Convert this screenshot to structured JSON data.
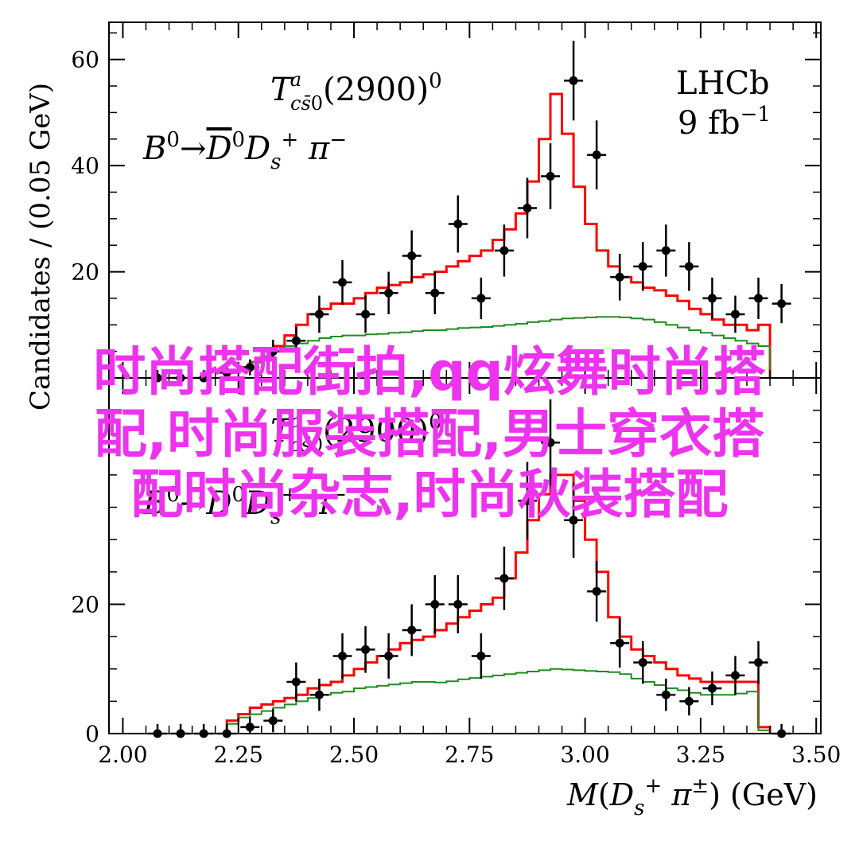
{
  "chart_data": [
    {
      "type": "histogram_with_points",
      "panel": "top",
      "annotation_resonance": "T^a_{cs̄0}(2900)^0",
      "annotation_decay": "B^0 → D̄^0 D_s^+ π^-",
      "experiment_label": "LHCb",
      "luminosity_label": "9 fb^-1",
      "ylabel": "Candidates / (0.05 GeV)",
      "ylim": [
        0,
        67
      ],
      "yticks": [
        20,
        40,
        60
      ],
      "xlim": [
        1.97,
        3.51
      ],
      "bin_edges": [
        2.225,
        2.25,
        2.275,
        2.3,
        2.325,
        2.35,
        2.375,
        2.4,
        2.425,
        2.45,
        2.475,
        2.5,
        2.525,
        2.55,
        2.575,
        2.6,
        2.625,
        2.65,
        2.675,
        2.7,
        2.725,
        2.75,
        2.775,
        2.8,
        2.825,
        2.85,
        2.875,
        2.9,
        2.925,
        2.95,
        2.975,
        3.0,
        3.025,
        3.05,
        3.075,
        3.1,
        3.125,
        3.15,
        3.175,
        3.2,
        3.225,
        3.25,
        3.275,
        3.3,
        3.325,
        3.35,
        3.375,
        3.4
      ],
      "series": [
        {
          "name": "",
          "color": "#ff0000",
          "values": [
            1,
            2,
            3,
            4,
            6,
            8,
            10,
            12,
            13,
            14,
            14,
            15,
            16,
            17,
            17.5,
            18,
            19,
            19.5,
            20,
            21,
            22,
            23,
            24,
            26,
            28,
            31,
            37,
            45,
            53.5,
            46,
            36,
            29,
            24,
            21,
            19,
            18,
            17,
            16.5,
            15.5,
            14.5,
            13,
            12,
            11,
            10,
            10,
            9,
            10
          ]
        },
        {
          "name": "",
          "color": "#228b22",
          "values": [
            1,
            2,
            3,
            4,
            5,
            6,
            6.5,
            7,
            7.5,
            7.8,
            8,
            8,
            8.2,
            8.3,
            8.5,
            8.6,
            8.8,
            9,
            9,
            9.2,
            9.4,
            9.5,
            9.6,
            9.8,
            10,
            10.2,
            10.5,
            10.7,
            11,
            11.2,
            11.3,
            11.4,
            11.5,
            11.5,
            11.4,
            11.2,
            11,
            10.5,
            10,
            9.5,
            9,
            8.5,
            8,
            7.5,
            7,
            6.5,
            6
          ]
        }
      ],
      "points": {
        "x": [
          2.075,
          2.125,
          2.175,
          2.225,
          2.275,
          2.325,
          2.375,
          2.425,
          2.475,
          2.525,
          2.575,
          2.625,
          2.675,
          2.725,
          2.775,
          2.825,
          2.875,
          2.925,
          2.975,
          3.025,
          3.075,
          3.125,
          3.175,
          3.225,
          3.275,
          3.325,
          3.375,
          3.425
        ],
        "y": [
          0,
          0,
          0,
          1,
          2,
          5,
          7,
          12,
          18,
          12,
          16,
          23,
          16,
          29,
          15,
          24,
          32,
          38,
          56,
          42,
          19,
          21,
          24,
          21,
          15,
          12,
          15,
          14
        ],
        "yerr": [
          1.5,
          1.5,
          1.5,
          1.5,
          1.5,
          2.2,
          2.6,
          3.5,
          4.2,
          3.5,
          4,
          4.8,
          4,
          5.4,
          3.9,
          4.9,
          5.7,
          6.2,
          7.5,
          6.5,
          4.4,
          4.6,
          4.9,
          4.6,
          3.9,
          3.5,
          3.9,
          3.7
        ]
      }
    },
    {
      "type": "histogram_with_points",
      "panel": "bottom",
      "annotation_resonance": "T^a_{cs̄0}(2900)^0",
      "annotation_decay": "B^0 → D^0 D_s^+ π^-",
      "xlabel": "M(D_s^+ π^±) (GeV)",
      "xlim": [
        1.97,
        3.51
      ],
      "xticks": [
        2.0,
        2.25,
        2.5,
        2.75,
        3.0,
        3.25,
        3.5
      ],
      "xtick_labels": [
        "2.00",
        "2.25",
        "2.50",
        "2.75",
        "3.00",
        "3.25",
        "3.50"
      ],
      "ylim": [
        0,
        55
      ],
      "yticks": [
        0,
        20
      ],
      "bin_edges": [
        2.225,
        2.25,
        2.275,
        2.3,
        2.325,
        2.35,
        2.375,
        2.4,
        2.425,
        2.45,
        2.475,
        2.5,
        2.525,
        2.55,
        2.575,
        2.6,
        2.625,
        2.65,
        2.675,
        2.7,
        2.725,
        2.75,
        2.775,
        2.8,
        2.825,
        2.85,
        2.875,
        2.9,
        2.925,
        2.95,
        2.975,
        3.0,
        3.025,
        3.05,
        3.075,
        3.1,
        3.125,
        3.15,
        3.175,
        3.2,
        3.225,
        3.25,
        3.275,
        3.3,
        3.325,
        3.35,
        3.375,
        3.4
      ],
      "series": [
        {
          "name": "",
          "color": "#ff0000",
          "values": [
            2,
            3,
            4,
            4.5,
            5,
            5.5,
            6,
            7,
            7.5,
            8,
            9,
            10,
            11,
            12,
            13,
            14,
            14.5,
            15,
            16,
            17,
            18,
            19,
            20,
            21,
            24,
            28,
            33,
            37,
            40,
            40,
            36,
            30,
            25,
            18,
            15,
            13,
            12,
            11,
            10,
            9,
            8.5,
            8,
            8,
            8,
            8,
            8,
            1
          ]
        },
        {
          "name": "",
          "color": "#228b22",
          "values": [
            1.5,
            2.5,
            3,
            3.5,
            4,
            4.5,
            5,
            5.5,
            6,
            6.3,
            6.5,
            7,
            7.2,
            7.4,
            7.6,
            7.8,
            8,
            8,
            7.9,
            8.1,
            8.4,
            8.6,
            8.8,
            9,
            9.2,
            9.4,
            9.6,
            9.8,
            10,
            9.9,
            9.8,
            9.7,
            9.6,
            9.5,
            9.2,
            8.5,
            8,
            7.5,
            7,
            6.7,
            6.3,
            6,
            6,
            6,
            6.2,
            6.5,
            0.5
          ]
        }
      ],
      "points": {
        "x": [
          2.075,
          2.125,
          2.175,
          2.225,
          2.275,
          2.325,
          2.375,
          2.425,
          2.475,
          2.525,
          2.575,
          2.625,
          2.675,
          2.725,
          2.775,
          2.825,
          2.875,
          2.925,
          2.975,
          3.025,
          3.075,
          3.125,
          3.175,
          3.225,
          3.275,
          3.325,
          3.375,
          3.425
        ],
        "y": [
          0,
          0,
          0,
          0,
          1,
          2,
          8,
          6,
          12,
          13,
          12,
          16,
          20,
          20,
          12,
          24,
          36,
          45,
          33,
          22,
          14,
          11,
          6,
          5,
          7,
          9,
          11,
          0
        ],
        "yerr": [
          1.5,
          1.5,
          1.5,
          1.5,
          1.6,
          1.8,
          3,
          2.5,
          3.5,
          3.6,
          3.5,
          4,
          4.5,
          4.5,
          3.5,
          4.9,
          6,
          6.7,
          5.8,
          4.7,
          3.8,
          3.3,
          2.5,
          2.2,
          2.6,
          3,
          3.3,
          1.5
        ]
      }
    }
  ],
  "watermark": {
    "line1": "时尚搭配街拍,qq炫舞时尚搭",
    "line2": "配,时尚服装搭配,男士穿衣搭",
    "line3": "配时尚杂志,时尚秋装搭配",
    "color": "#ee33ee"
  }
}
